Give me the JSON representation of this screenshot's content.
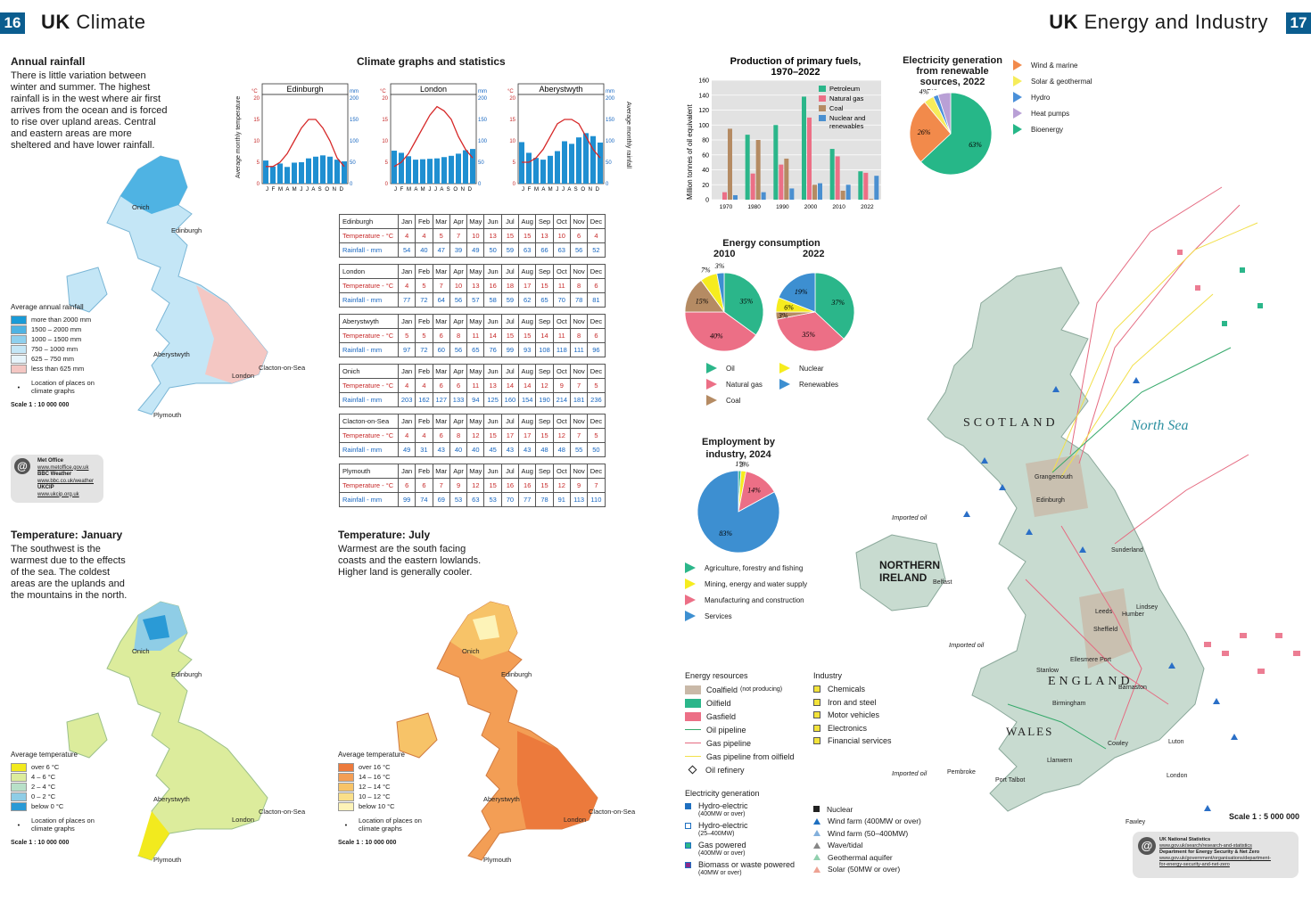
{
  "left_page": {
    "page_number": "16",
    "title_bold": "UK",
    "title_rest": "Climate",
    "annual_rainfall": {
      "title": "Annual rainfall",
      "text": "There is little variation between winter and summer. The highest rainfall is in the west where air first arrives from the ocean and is forced to rise over upland areas. Central and eastern areas are more sheltered and have lower rainfall.",
      "legend_title": "Average annual rainfall",
      "legend": [
        {
          "label": "more than 2000 mm",
          "color": "#1a9bd7"
        },
        {
          "label": "1500 – 2000 mm",
          "color": "#4fb3e3"
        },
        {
          "label": "1000 – 1500 mm",
          "color": "#8fd0ee"
        },
        {
          "label": "750 – 1000 mm",
          "color": "#c4e6f6"
        },
        {
          "label": "625 – 750 mm",
          "color": "#e6f4fb"
        },
        {
          "label": "less than 625 mm",
          "color": "#f4c7c3"
        }
      ],
      "location_note": "Location of places on climate graphs",
      "scale": "Scale 1 : 10 000 000",
      "places": [
        "Onich",
        "Edinburgh",
        "Aberystwyth",
        "London",
        "Clacton-on-Sea",
        "Plymouth"
      ]
    },
    "weblinks": {
      "lines": [
        "Met Office",
        "www.metoffice.gov.uk",
        "BBC Weather",
        "www.bbc.co.uk/weather",
        "UKCIP",
        "www.ukcip.org.uk"
      ]
    },
    "temp_january": {
      "title": "Temperature: January",
      "text": "The southwest is the warmest due to the effects of the sea. The coldest areas are the uplands and the mountains in the north.",
      "legend_title": "Average temperature",
      "legend": [
        {
          "label": "over 6 °C",
          "color": "#f2ea1e"
        },
        {
          "label": "4 – 6 °C",
          "color": "#dcec9c"
        },
        {
          "label": "2 – 4 °C",
          "color": "#b8e0c8"
        },
        {
          "label": "0 – 2 °C",
          "color": "#8fcde6"
        },
        {
          "label": "below 0 °C",
          "color": "#2a9ad6"
        }
      ],
      "location_note": "Location of places on climate graphs",
      "scale": "Scale 1 : 10 000 000"
    },
    "temp_july": {
      "title": "Temperature: July",
      "text": "Warmest are the south facing coasts and the eastern lowlands. Higher land is generally cooler.",
      "legend_title": "Average temperature",
      "legend": [
        {
          "label": "over 16 °C",
          "color": "#ec7a3c"
        },
        {
          "label": "14 – 16 °C",
          "color": "#f39e55"
        },
        {
          "label": "12 – 14 °C",
          "color": "#f7c368"
        },
        {
          "label": "10 – 12 °C",
          "color": "#fadf8a"
        },
        {
          "label": "below 10 °C",
          "color": "#fdf3b8"
        }
      ],
      "location_note": "Location of places on climate graphs",
      "scale": "Scale 1 : 10 000 000"
    },
    "climate_graphs": {
      "title": "Climate graphs and statistics",
      "y_left_label": "Average monthly temperature",
      "y_right_label": "Average monthly rainfall",
      "unit_temp": "°C",
      "unit_rain": "mm",
      "temp_ticks": [
        "20",
        "15",
        "10",
        "5",
        "0"
      ],
      "rain_ticks": [
        "200",
        "150",
        "100",
        "50",
        "0"
      ],
      "month_initials": "J F M A M J J A S O N D",
      "graphs": [
        "Edinburgh",
        "London",
        "Aberystwyth"
      ]
    },
    "climate_tables": {
      "months": [
        "Jan",
        "Feb",
        "Mar",
        "Apr",
        "May",
        "Jun",
        "Jul",
        "Aug",
        "Sep",
        "Oct",
        "Nov",
        "Dec"
      ],
      "temp_label": "Temperature - °C",
      "rain_label": "Rainfall - mm",
      "stations": [
        {
          "name": "Edinburgh",
          "temp": [
            "4",
            "4",
            "5",
            "7",
            "10",
            "13",
            "15",
            "15",
            "13",
            "10",
            "6",
            "4"
          ],
          "rain": [
            "54",
            "40",
            "47",
            "39",
            "49",
            "50",
            "59",
            "63",
            "66",
            "63",
            "56",
            "52"
          ]
        },
        {
          "name": "London",
          "temp": [
            "4",
            "5",
            "7",
            "10",
            "13",
            "16",
            "18",
            "17",
            "15",
            "11",
            "8",
            "6"
          ],
          "rain": [
            "77",
            "72",
            "64",
            "56",
            "57",
            "58",
            "59",
            "62",
            "65",
            "70",
            "78",
            "81"
          ]
        },
        {
          "name": "Aberystwyth",
          "temp": [
            "5",
            "5",
            "6",
            "8",
            "11",
            "14",
            "15",
            "15",
            "14",
            "11",
            "8",
            "6"
          ],
          "rain": [
            "97",
            "72",
            "60",
            "56",
            "65",
            "76",
            "99",
            "93",
            "108",
            "118",
            "111",
            "96"
          ]
        },
        {
          "name": "Onich",
          "temp": [
            "4",
            "4",
            "6",
            "6",
            "11",
            "13",
            "14",
            "14",
            "12",
            "9",
            "7",
            "5"
          ],
          "rain": [
            "203",
            "162",
            "127",
            "133",
            "94",
            "125",
            "160",
            "154",
            "190",
            "214",
            "181",
            "236"
          ]
        },
        {
          "name": "Clacton-on-Sea",
          "temp": [
            "4",
            "4",
            "6",
            "8",
            "12",
            "15",
            "17",
            "17",
            "15",
            "12",
            "7",
            "5"
          ],
          "rain": [
            "49",
            "31",
            "43",
            "40",
            "40",
            "45",
            "43",
            "43",
            "48",
            "48",
            "55",
            "50"
          ]
        },
        {
          "name": "Plymouth",
          "temp": [
            "6",
            "6",
            "7",
            "9",
            "12",
            "15",
            "16",
            "16",
            "15",
            "12",
            "9",
            "7"
          ],
          "rain": [
            "99",
            "74",
            "69",
            "53",
            "63",
            "53",
            "70",
            "77",
            "78",
            "91",
            "113",
            "110"
          ]
        }
      ]
    }
  },
  "right_page": {
    "page_number": "17",
    "title_bold": "UK",
    "title_rest": "Energy and Industry",
    "electricity_renewables": {
      "title": "Electricity generation from renewable sources, 2022",
      "legend": [
        "Wind & marine",
        "Solar & geothermal",
        "Hydro",
        "Heat pumps",
        "Bioenergy"
      ],
      "colors": [
        "#f28a4b",
        "#f6ec5a",
        "#4a90d9",
        "#b9a0d6",
        "#26b788"
      ]
    },
    "energy_consumption": {
      "title": "Energy consumption",
      "year_a": "2010",
      "year_b": "2022",
      "legend": [
        "Oil",
        "Nuclear",
        "Natural gas",
        "Renewables",
        "Coal"
      ]
    },
    "employment": {
      "title": "Employment by industry, 2024",
      "legend": [
        "Agriculture, forestry and fishing",
        "Mining, energy and water supply",
        "Manufacturing and construction",
        "Services"
      ]
    },
    "map_labels": {
      "scotland": "SCOTLAND",
      "england": "ENGLAND",
      "wales": "WALES",
      "northern_ireland": "NORTHERN IRELAND",
      "north_sea": "North Sea",
      "imported_oil": "Imported oil",
      "places": [
        "Grangemouth",
        "Edinburgh",
        "Sunderland",
        "Belfast",
        "Leeds",
        "Humber",
        "Lindsey",
        "Sheffield",
        "Ellesmere Port",
        "Stanlow",
        "Barnaston",
        "Birmingham",
        "Llanwern",
        "Cowley",
        "Luton",
        "London",
        "Pembroke",
        "Port Talbot",
        "Fawley"
      ],
      "scale": "Scale 1 : 5 000 000"
    },
    "energy_key": {
      "resources_title": "Energy resources",
      "resources": [
        "Coalfield",
        "Oilfield",
        "Gasfield",
        "Oil pipeline",
        "Gas pipeline",
        "Gas pipeline from oilfield",
        "Oil refinery"
      ],
      "coalfield_note": "(not producing)",
      "industry_title": "Industry",
      "industry": [
        "Chemicals",
        "Iron and steel",
        "Motor vehicles",
        "Electronics",
        "Financial services"
      ],
      "generation_title": "Electricity generation",
      "generation_left": [
        {
          "label": "Hydro-electric",
          "sub": "(400MW or over)"
        },
        {
          "label": "Hydro-electric",
          "sub": "(25–400MW)"
        },
        {
          "label": "Gas powered",
          "sub": "(400MW or over)"
        },
        {
          "label": "Biomass or waste powered",
          "sub": "(40MW or over)"
        }
      ],
      "generation_right": [
        "Nuclear",
        "Wind farm (400MW or over)",
        "Wind farm (50–400MW)",
        "Wave/tidal",
        "Geothermal aquifer",
        "Solar (50MW or over)"
      ]
    },
    "weblinks": {
      "lines": [
        "UK National Statistics",
        "www.gov.uk/search/research-and-statistics",
        "Department for Energy Security & Net Zero",
        "www.gov.uk/government/organisations/department-",
        "for-energy-security-and-net-zero"
      ]
    }
  },
  "chart_data": [
    {
      "type": "bar",
      "title": "Production of primary fuels, 1970–2022",
      "ylabel": "Million tonnes of oil equivalent",
      "ylim": [
        0,
        160
      ],
      "yticks": [
        "0",
        "20",
        "40",
        "60",
        "80",
        "100",
        "120",
        "140",
        "160"
      ],
      "categories": [
        "1970",
        "1980",
        "1990",
        "2000",
        "2010",
        "2022"
      ],
      "series": [
        {
          "name": "Petroleum",
          "color": "#2bb68a",
          "values": [
            0,
            87,
            100,
            138,
            68,
            38
          ]
        },
        {
          "name": "Natural gas",
          "color": "#ec6f86",
          "values": [
            10,
            35,
            47,
            110,
            58,
            36
          ]
        },
        {
          "name": "Coal",
          "color": "#b58b63",
          "values": [
            95,
            80,
            55,
            20,
            12,
            1
          ]
        },
        {
          "name": "Nuclear and renewables",
          "color": "#4a8fd0",
          "values": [
            6,
            10,
            15,
            22,
            20,
            32
          ]
        }
      ]
    },
    {
      "type": "pie",
      "title": "Electricity generation from renewable sources, 2022",
      "labels": [
        "Bioenergy",
        "Wind & marine",
        "Solar & geothermal",
        "Hydro",
        "Heat pumps"
      ],
      "values": [
        63,
        26,
        4,
        2,
        5
      ],
      "value_labels": [
        "63%",
        "26%",
        "4%",
        "2%",
        "5%"
      ]
    },
    {
      "type": "pie",
      "title": "Energy consumption 2010",
      "labels": [
        "Oil",
        "Natural gas",
        "Coal",
        "Nuclear",
        "Renewables"
      ],
      "values": [
        35,
        40,
        15,
        7,
        3
      ],
      "value_labels": [
        "35%",
        "40%",
        "15%",
        "7%",
        "3%"
      ]
    },
    {
      "type": "pie",
      "title": "Energy consumption 2022",
      "labels": [
        "Oil",
        "Natural gas",
        "Coal",
        "Nuclear",
        "Renewables"
      ],
      "values": [
        37,
        35,
        3,
        6,
        19
      ],
      "value_labels": [
        "37%",
        "35%",
        "3%",
        "6%",
        "19%"
      ]
    },
    {
      "type": "pie",
      "title": "Employment by industry, 2024",
      "labels": [
        "Agriculture, forestry and fishing",
        "Mining, energy and water supply",
        "Manufacturing and construction",
        "Services"
      ],
      "values": [
        1,
        2,
        14,
        83
      ],
      "value_labels": [
        "1%",
        "2%",
        "14%",
        "83%"
      ]
    }
  ]
}
